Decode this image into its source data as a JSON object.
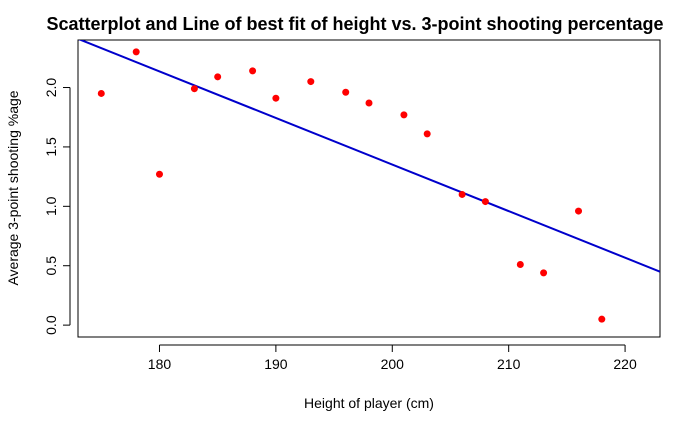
{
  "chart_data": {
    "type": "scatter",
    "title": "Scatterplot and Line of best fit of height vs. 3-point shooting percentage",
    "xlabel": "Height of player (cm)",
    "ylabel": "Average 3-point shooting %age",
    "xlim": [
      173,
      223
    ],
    "ylim": [
      -0.1,
      2.4
    ],
    "x_ticks": [
      "180",
      "190",
      "200",
      "210",
      "220"
    ],
    "y_ticks": [
      "0.0",
      "0.5",
      "1.0",
      "1.5",
      "2.0"
    ],
    "grid": false,
    "series": [
      {
        "type": "scatter",
        "color": "#ff0000",
        "x": [
          175,
          178,
          180,
          183,
          185,
          188,
          190,
          193,
          196,
          198,
          201,
          203,
          206,
          208,
          211,
          213,
          216,
          218
        ],
        "y": [
          1.95,
          2.3,
          1.27,
          1.99,
          2.09,
          2.14,
          1.91,
          2.05,
          1.96,
          1.87,
          1.77,
          1.61,
          1.1,
          1.04,
          0.51,
          0.44,
          0.96,
          0.05
        ]
      },
      {
        "type": "line",
        "color": "#0000cc",
        "x": [
          173,
          223
        ],
        "y": [
          2.41,
          0.45
        ]
      }
    ]
  }
}
